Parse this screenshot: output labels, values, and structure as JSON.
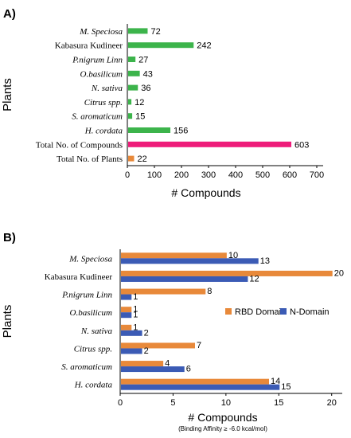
{
  "panel_labels": [
    "A)",
    "B)"
  ],
  "chart_data": [
    {
      "type": "bar",
      "orientation": "horizontal",
      "categories": [
        "M. Speciosa",
        "Kabasura Kudineer",
        "P.nigrum Linn",
        "O.basilicum",
        "N. sativa",
        "Citrus spp.",
        "S. aromaticum",
        "H. cordata",
        "Total No. of Compounds",
        "Total No. of Plants"
      ],
      "italic_categories": [
        true,
        false,
        true,
        true,
        true,
        true,
        true,
        true,
        false,
        false
      ],
      "values": [
        72,
        242,
        27,
        43,
        36,
        12,
        15,
        156,
        603,
        22
      ],
      "bar_colors": [
        "#3cb44b",
        "#3cb44b",
        "#3cb44b",
        "#3cb44b",
        "#3cb44b",
        "#3cb44b",
        "#3cb44b",
        "#3cb44b",
        "#ee1c7a",
        "#e8893a"
      ],
      "xlabel": "# Compounds",
      "ylabel": "Plants",
      "xlim": [
        0,
        700
      ],
      "xticks": [
        0,
        100,
        200,
        300,
        400,
        500,
        600,
        700
      ],
      "grid": false
    },
    {
      "type": "bar",
      "orientation": "horizontal",
      "categories": [
        "M. Speciosa",
        "Kabasura Kudineer",
        "P.nigrum Linn",
        "O.basilicum",
        "N. sativa",
        "Citrus spp.",
        "S. aromaticum",
        "H. cordata"
      ],
      "italic_categories": [
        true,
        false,
        true,
        true,
        true,
        true,
        true,
        true
      ],
      "series": [
        {
          "name": "RBD Domain",
          "color": "#e8893a",
          "values": [
            10,
            20,
            8,
            1,
            1,
            7,
            4,
            14
          ]
        },
        {
          "name": "N-Domain",
          "color": "#3b5bb5",
          "values": [
            13,
            12,
            1,
            1,
            2,
            2,
            6,
            15
          ]
        }
      ],
      "xlabel": "# Compounds",
      "xlabel_note": "(Binding Affinity ≥ -6.0 kcal/mol)",
      "ylabel": "Plants",
      "xlim": [
        0,
        21
      ],
      "xticks": [
        0,
        5,
        10,
        15,
        20
      ],
      "legend_position": "center-right",
      "grid": false
    }
  ]
}
